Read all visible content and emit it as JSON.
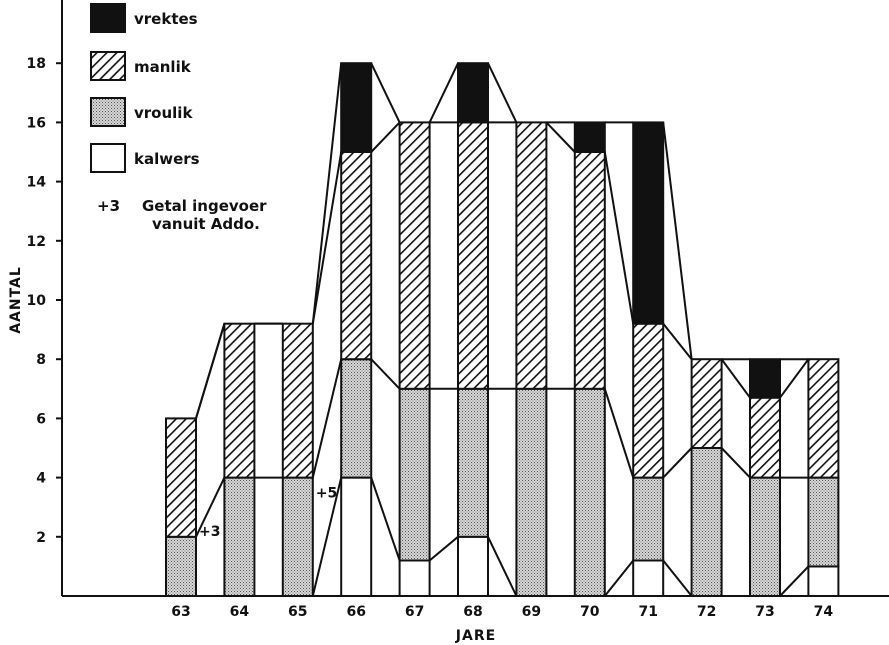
{
  "chart_data": {
    "type": "bar",
    "stacked": true,
    "title": "",
    "xlabel": "JARE",
    "ylabel": "AANTAL",
    "ylim": [
      0,
      19
    ],
    "yticks": [
      2,
      4,
      6,
      8,
      10,
      12,
      14,
      16,
      18
    ],
    "categories": [
      "63",
      "64",
      "65",
      "66",
      "67",
      "68",
      "69",
      "70",
      "71",
      "72",
      "73",
      "74"
    ],
    "series": [
      {
        "name": "kalwers",
        "key": "kalwers",
        "pattern": "white",
        "values": [
          0,
          0,
          0,
          4,
          1.2,
          2,
          0,
          0,
          1.2,
          0,
          0,
          1
        ]
      },
      {
        "name": "vroulik",
        "key": "vroulik",
        "pattern": "dotted",
        "values": [
          2,
          4,
          4,
          4,
          5.8,
          5,
          7,
          7,
          2.8,
          5,
          4,
          3
        ]
      },
      {
        "name": "manlik",
        "key": "manlik",
        "pattern": "hatched",
        "values": [
          4,
          5.2,
          5.2,
          7,
          9,
          9,
          9,
          8,
          5.2,
          3,
          2.7,
          4
        ]
      },
      {
        "name": "vrektes",
        "key": "vrektes",
        "pattern": "black",
        "values": [
          0,
          0,
          0,
          3,
          0,
          2,
          0,
          1,
          6.8,
          0,
          1.3,
          0
        ]
      }
    ],
    "legend_position": "top-left",
    "legend_note": {
      "marker": "+3",
      "text_line1": "Getal ingevoer",
      "text_line2": "vanuit Addo."
    },
    "annotations": [
      {
        "text": "+3",
        "category": "63",
        "y": 2.2
      },
      {
        "text": "+5",
        "category": "65",
        "y": 3.5
      }
    ],
    "colors": {
      "ink": "#111111",
      "dots_bg": "#d9d9d9",
      "dots_fg": "#555555",
      "paper": "#ffffff"
    }
  }
}
